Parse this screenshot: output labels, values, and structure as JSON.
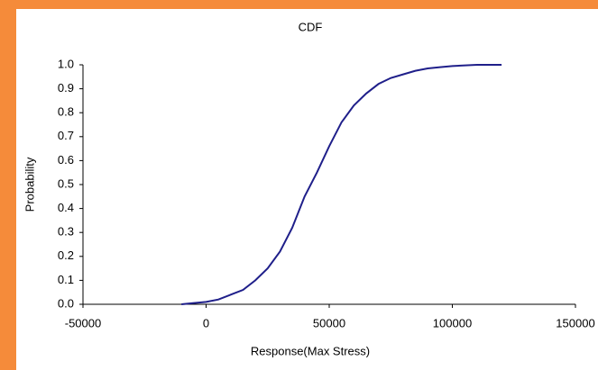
{
  "chart_data": {
    "type": "line",
    "title": "CDF",
    "x_label": "Response(Max Stress)",
    "y_label": "Probability",
    "x": [
      -10000,
      -5000,
      0,
      5000,
      10000,
      15000,
      20000,
      25000,
      30000,
      35000,
      40000,
      45000,
      50000,
      55000,
      60000,
      65000,
      70000,
      75000,
      80000,
      85000,
      90000,
      95000,
      100000,
      110000,
      120000
    ],
    "series": [
      {
        "color": "#1f1f8a",
        "values": [
          0,
          0.005,
          0.01,
          0.02,
          0.04,
          0.06,
          0.1,
          0.15,
          0.22,
          0.32,
          0.45,
          0.55,
          0.66,
          0.76,
          0.83,
          0.88,
          0.92,
          0.945,
          0.96,
          0.975,
          0.985,
          0.99,
          0.995,
          1.0,
          1.0
        ]
      }
    ],
    "xlim": [
      -50000,
      150000
    ],
    "xticks": [
      -50000,
      0,
      50000,
      100000,
      150000
    ],
    "ylim": [
      0,
      1
    ],
    "yticks": [
      {
        "value": 0,
        "label": "0.0"
      },
      0.1,
      0.2,
      0.3,
      0.4,
      0.5,
      0.6,
      0.7,
      0.8,
      0.9,
      {
        "value": 1,
        "label": "1.0"
      }
    ]
  }
}
